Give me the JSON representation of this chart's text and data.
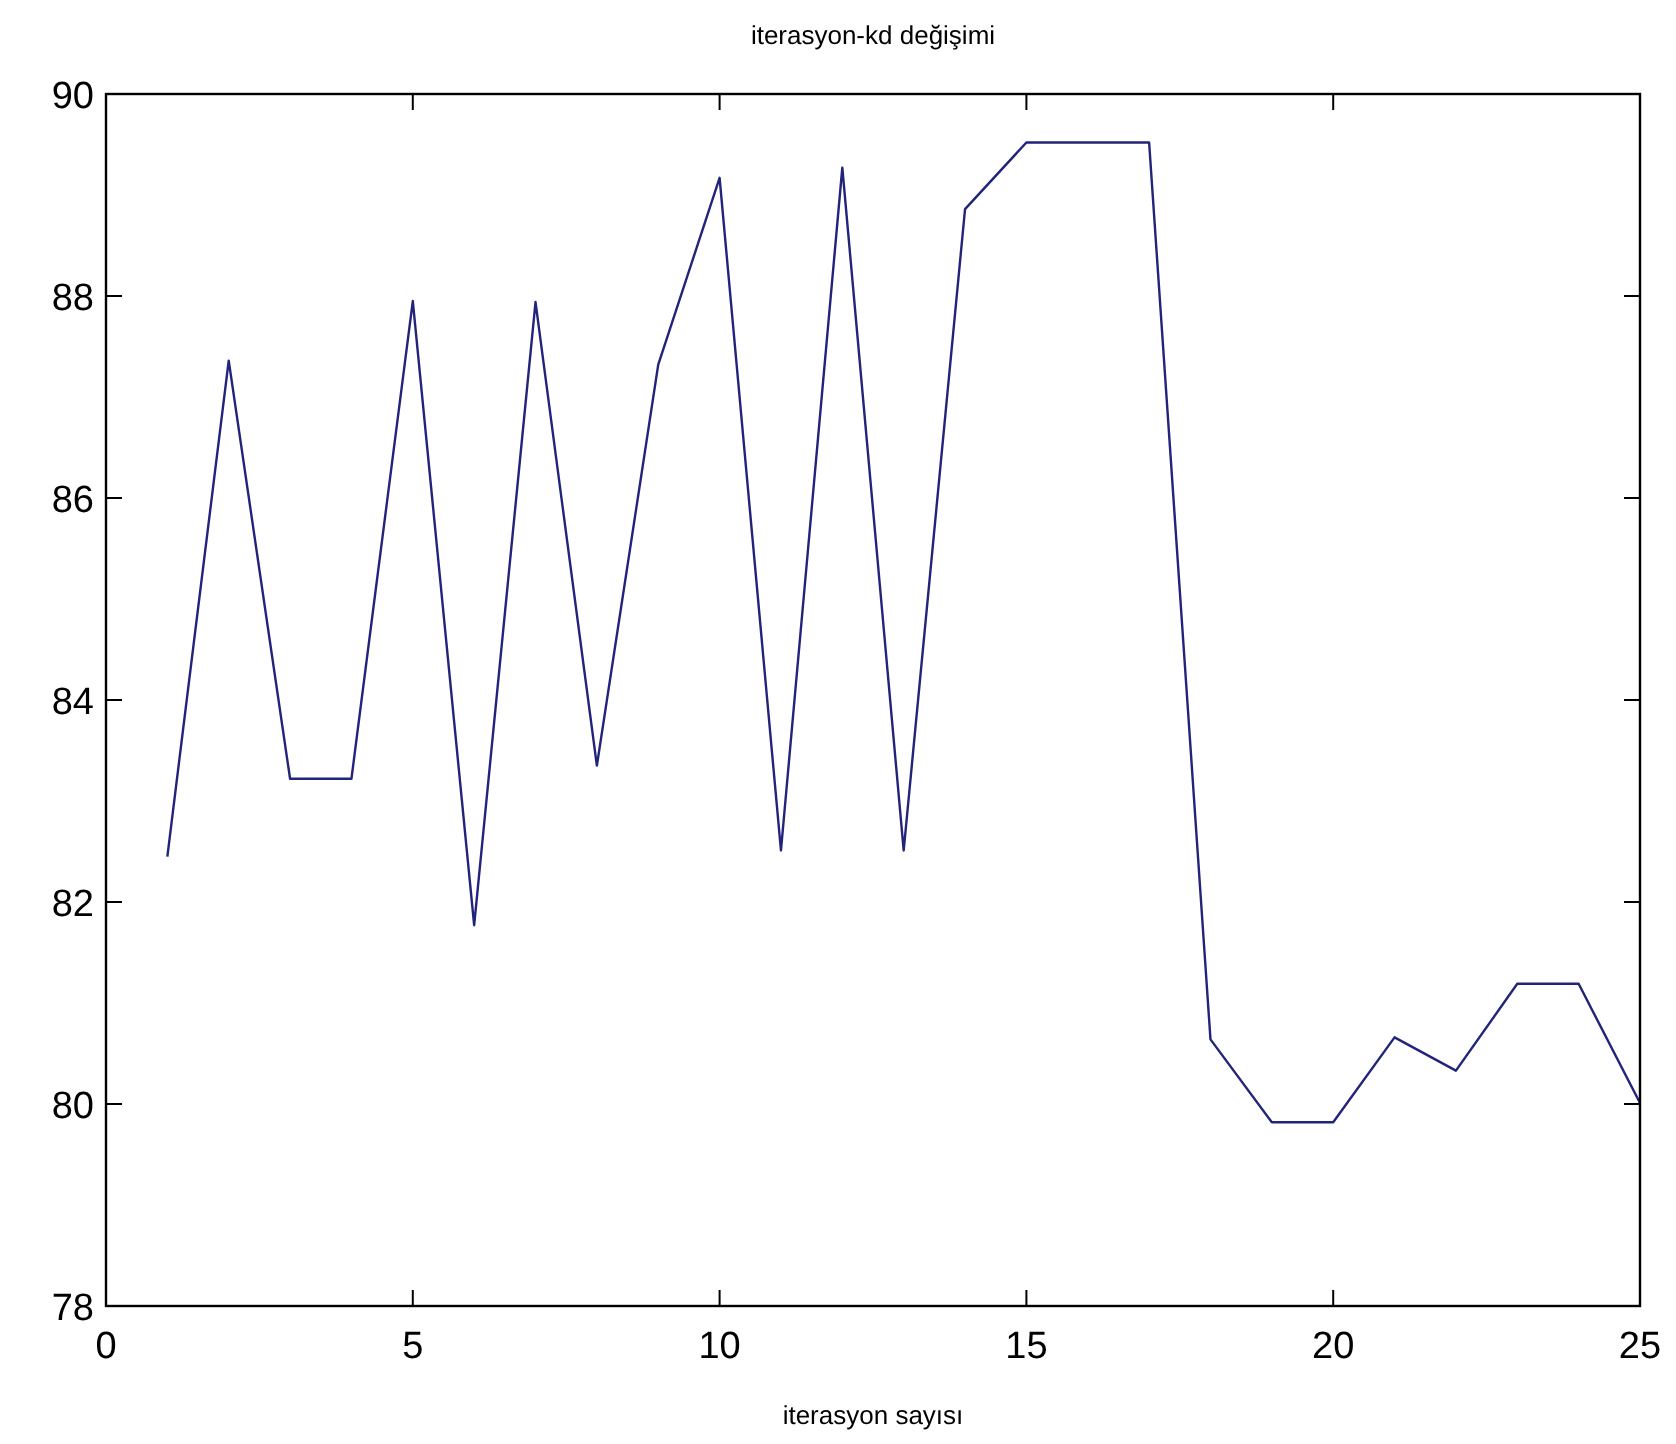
{
  "chart_data": {
    "type": "line",
    "title": "iterasyon-kd değişimi",
    "xlabel": "iterasyon sayısı",
    "x": [
      1,
      2,
      3,
      4,
      5,
      6,
      7,
      8,
      9,
      10,
      11,
      12,
      13,
      14,
      15,
      16,
      17,
      18,
      19,
      20,
      21,
      22,
      23,
      24,
      25
    ],
    "series": [
      {
        "color": "#22237a",
        "values": [
          82.45,
          87.36,
          83.22,
          83.22,
          87.95,
          81.77,
          87.94,
          83.35,
          87.32,
          89.17,
          82.51,
          89.27,
          82.51,
          88.86,
          89.52,
          89.52,
          89.52,
          80.64,
          79.82,
          79.82,
          80.66,
          80.33,
          81.19,
          81.19,
          80.01
        ]
      }
    ],
    "xlim": [
      0,
      25
    ],
    "xticks": [
      0,
      5,
      10,
      15,
      20,
      25
    ],
    "ylim": [
      78,
      90
    ],
    "yticks": [
      78,
      80,
      82,
      84,
      86,
      88,
      90
    ],
    "grid": false,
    "marker": "none",
    "line_style": "solid"
  }
}
